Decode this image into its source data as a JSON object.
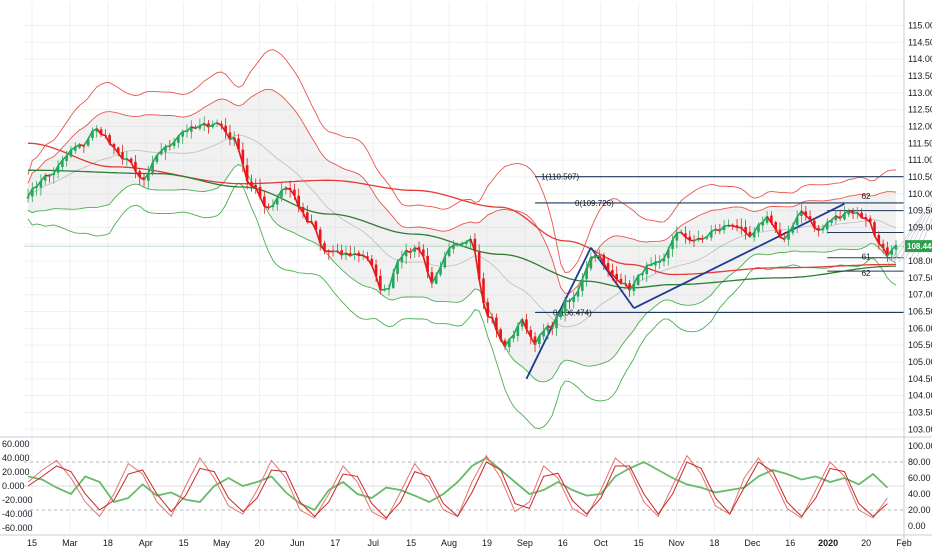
{
  "chart_data": [
    {
      "type": "candlestick",
      "instrument_price_label": "108.444",
      "colors": {
        "up": "#26a65b",
        "down": "#e8171b",
        "upper_band": "#e8554e",
        "lower_band": "#4caf50",
        "ma_long": "#e53935",
        "ma_green": "#2e7d32",
        "trend_line": "#1f3a93",
        "fib_line": "#1f3a5f",
        "price_badge": "#2e9e4f",
        "band_fill": "#d8d8d8"
      },
      "ylim": [
        102.8,
        115.7
      ],
      "y_ticks": [
        "103.000",
        "103.500",
        "104.000",
        "104.500",
        "105.000",
        "105.500",
        "106.000",
        "106.500",
        "107.000",
        "107.500",
        "108.000",
        "108.500",
        "109.000",
        "109.500",
        "110.000",
        "110.500",
        "111.000",
        "111.500",
        "112.000",
        "112.500",
        "113.000",
        "113.500",
        "114.000",
        "114.500",
        "115.000"
      ],
      "x_labels": [
        "15",
        "Mar",
        "18",
        "Apr",
        "15",
        "May",
        "20",
        "Jun",
        "17",
        "Jul",
        "15",
        "Aug",
        "19",
        "Sep",
        "16",
        "Oct",
        "15",
        "Nov",
        "18",
        "Dec",
        "16",
        "2020",
        "20",
        "Feb"
      ],
      "anchors": [
        {
          "i": 0,
          "v": 110.0
        },
        {
          "i": 4,
          "v": 110.5
        },
        {
          "i": 12,
          "v": 111.4
        },
        {
          "i": 16,
          "v": 111.9
        },
        {
          "i": 22,
          "v": 111.1
        },
        {
          "i": 27,
          "v": 110.4
        },
        {
          "i": 31,
          "v": 111.3
        },
        {
          "i": 37,
          "v": 111.9
        },
        {
          "i": 44,
          "v": 112.1
        },
        {
          "i": 48,
          "v": 111.6
        },
        {
          "i": 52,
          "v": 110.2
        },
        {
          "i": 56,
          "v": 109.6
        },
        {
          "i": 60,
          "v": 110.2
        },
        {
          "i": 66,
          "v": 109.1
        },
        {
          "i": 69,
          "v": 108.3
        },
        {
          "i": 73,
          "v": 108.2
        },
        {
          "i": 78,
          "v": 108.2
        },
        {
          "i": 83,
          "v": 107.1
        },
        {
          "i": 87,
          "v": 108.2
        },
        {
          "i": 91,
          "v": 108.4
        },
        {
          "i": 94,
          "v": 107.4
        },
        {
          "i": 99,
          "v": 108.4
        },
        {
          "i": 103,
          "v": 108.7
        },
        {
          "i": 107,
          "v": 106.4
        },
        {
          "i": 111,
          "v": 105.5
        },
        {
          "i": 115,
          "v": 106.2
        },
        {
          "i": 118,
          "v": 105.6
        },
        {
          "i": 121,
          "v": 106.0
        },
        {
          "i": 126,
          "v": 106.8
        },
        {
          "i": 132,
          "v": 108.2
        },
        {
          "i": 136,
          "v": 107.6
        },
        {
          "i": 140,
          "v": 107.2
        },
        {
          "i": 144,
          "v": 107.8
        },
        {
          "i": 147,
          "v": 107.9
        },
        {
          "i": 151,
          "v": 108.8
        },
        {
          "i": 156,
          "v": 108.6
        },
        {
          "i": 160,
          "v": 108.9
        },
        {
          "i": 164,
          "v": 109.1
        },
        {
          "i": 168,
          "v": 108.7
        },
        {
          "i": 172,
          "v": 109.3
        },
        {
          "i": 176,
          "v": 108.6
        },
        {
          "i": 180,
          "v": 109.5
        },
        {
          "i": 184,
          "v": 108.9
        },
        {
          "i": 188,
          "v": 109.3
        },
        {
          "i": 191,
          "v": 109.5
        },
        {
          "i": 195,
          "v": 109.3
        },
        {
          "i": 198,
          "v": 108.6
        },
        {
          "i": 200,
          "v": 108.1
        },
        {
          "i": 202,
          "v": 108.4
        }
      ],
      "ma_long": [
        {
          "i": 0,
          "v": 111.5
        },
        {
          "i": 20,
          "v": 110.8
        },
        {
          "i": 50,
          "v": 110.3
        },
        {
          "i": 70,
          "v": 110.4
        },
        {
          "i": 90,
          "v": 110.1
        },
        {
          "i": 110,
          "v": 109.6
        },
        {
          "i": 125,
          "v": 108.6
        },
        {
          "i": 140,
          "v": 107.9
        },
        {
          "i": 150,
          "v": 107.6
        },
        {
          "i": 175,
          "v": 107.8
        },
        {
          "i": 202,
          "v": 107.9
        }
      ],
      "ma_green": [
        {
          "i": 0,
          "v": 110.7
        },
        {
          "i": 30,
          "v": 110.6
        },
        {
          "i": 50,
          "v": 110.2
        },
        {
          "i": 70,
          "v": 109.4
        },
        {
          "i": 90,
          "v": 108.8
        },
        {
          "i": 110,
          "v": 108.2
        },
        {
          "i": 130,
          "v": 107.4
        },
        {
          "i": 140,
          "v": 107.2
        },
        {
          "i": 150,
          "v": 107.3
        },
        {
          "i": 175,
          "v": 107.5
        },
        {
          "i": 202,
          "v": 107.85
        }
      ],
      "fib_levels": [
        {
          "label": "1(110.507)",
          "value": 110.507
        },
        {
          "label": "0(109.726)",
          "value": 109.726
        },
        {
          "label": "0(106.474)",
          "value": 106.474
        }
      ],
      "fib_extra_levels": [
        109.5,
        108.85,
        108.1,
        107.7
      ],
      "fib_small_labels": [
        "62",
        "61",
        "62"
      ],
      "trend_lines": [
        {
          "x1": 116,
          "y1": 104.5,
          "x2": 131,
          "y2": 108.4
        },
        {
          "x1": 131,
          "y1": 108.4,
          "x2": 141,
          "y2": 106.6
        },
        {
          "x1": 141,
          "y1": 106.6,
          "x2": 190,
          "y2": 109.7
        }
      ]
    },
    {
      "type": "line",
      "ylim": [
        -65000,
        65000
      ],
      "left_ticks": [
        "60.000",
        "40.000",
        "20.000",
        "0.000",
        "-20.000",
        "-40.000",
        "-60.000"
      ],
      "right_ticks": [
        "100.00",
        "80.00",
        "60.00",
        "40.00",
        "20.00",
        "0.00"
      ],
      "dashed_levels": [
        80,
        20
      ],
      "series": [
        {
          "color": "#66bb6a",
          "values": [
            62,
            58,
            48,
            40,
            62,
            55,
            30,
            35,
            52,
            38,
            42,
            33,
            30,
            50,
            60,
            50,
            55,
            62,
            42,
            28,
            20,
            45,
            55,
            40,
            35,
            48,
            45,
            38,
            30,
            40,
            55,
            75,
            85,
            70,
            55,
            40,
            45,
            55,
            45,
            38,
            40,
            62,
            72,
            80,
            70,
            60,
            52,
            48,
            42,
            45,
            48,
            62,
            70,
            65,
            58,
            62,
            55,
            60,
            52,
            65,
            48
          ]
        },
        {
          "color": "#e57373",
          "values": [
            55,
            70,
            82,
            60,
            30,
            12,
            40,
            78,
            65,
            30,
            12,
            50,
            85,
            60,
            25,
            15,
            45,
            82,
            60,
            20,
            10,
            40,
            75,
            55,
            18,
            8,
            42,
            78,
            55,
            20,
            12,
            55,
            88,
            60,
            18,
            30,
            75,
            60,
            22,
            12,
            45,
            85,
            70,
            30,
            12,
            50,
            88,
            65,
            25,
            15,
            60,
            85,
            60,
            22,
            10,
            45,
            80,
            62,
            20,
            10,
            35
          ]
        },
        {
          "color": "#c62828",
          "values": [
            50,
            62,
            75,
            68,
            40,
            20,
            32,
            65,
            70,
            40,
            18,
            38,
            72,
            68,
            35,
            18,
            35,
            70,
            68,
            30,
            12,
            30,
            65,
            62,
            28,
            10,
            30,
            68,
            62,
            28,
            12,
            42,
            80,
            70,
            28,
            22,
            62,
            66,
            32,
            15,
            35,
            75,
            75,
            40,
            15,
            40,
            80,
            72,
            35,
            15,
            48,
            80,
            68,
            30,
            12,
            35,
            72,
            68,
            28,
            12,
            28
          ]
        }
      ]
    }
  ]
}
